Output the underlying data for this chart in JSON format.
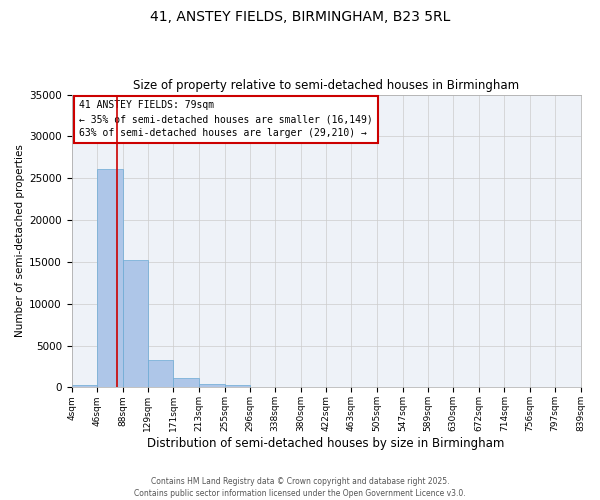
{
  "title_line1": "41, ANSTEY FIELDS, BIRMINGHAM, B23 5RL",
  "title_line2": "Size of property relative to semi-detached houses in Birmingham",
  "xlabel": "Distribution of semi-detached houses by size in Birmingham",
  "ylabel": "Number of semi-detached properties",
  "annotation_line1": "41 ANSTEY FIELDS: 79sqm",
  "annotation_line2": "← 35% of semi-detached houses are smaller (16,149)",
  "annotation_line3": "63% of semi-detached houses are larger (29,210) →",
  "bins": [
    4,
    46,
    88,
    129,
    171,
    213,
    255,
    296,
    338,
    380,
    422,
    463,
    505,
    547,
    589,
    630,
    672,
    714,
    756,
    797,
    839
  ],
  "bin_labels": [
    "4sqm",
    "46sqm",
    "88sqm",
    "129sqm",
    "171sqm",
    "213sqm",
    "255sqm",
    "296sqm",
    "338sqm",
    "380sqm",
    "422sqm",
    "463sqm",
    "505sqm",
    "547sqm",
    "589sqm",
    "630sqm",
    "672sqm",
    "714sqm",
    "756sqm",
    "797sqm",
    "839sqm"
  ],
  "counts": [
    350,
    26100,
    15200,
    3250,
    1100,
    450,
    250,
    0,
    0,
    0,
    0,
    0,
    0,
    0,
    0,
    0,
    0,
    0,
    0,
    0
  ],
  "bar_color": "#aec6e8",
  "bar_edgecolor": "#6aaad4",
  "vline_color": "#cc0000",
  "vline_x": 79,
  "ylim": [
    0,
    35000
  ],
  "yticks": [
    0,
    5000,
    10000,
    15000,
    20000,
    25000,
    30000,
    35000
  ],
  "grid_color": "#cccccc",
  "bg_color": "#eef2f8",
  "annotation_box_color": "#cc0000",
  "footer_line1": "Contains HM Land Registry data © Crown copyright and database right 2025.",
  "footer_line2": "Contains public sector information licensed under the Open Government Licence v3.0."
}
